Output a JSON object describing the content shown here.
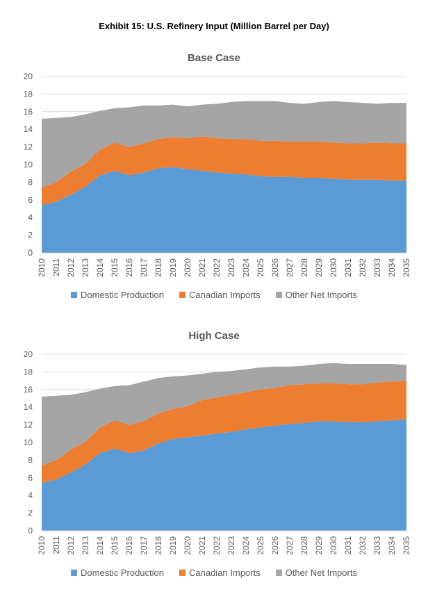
{
  "title": "Exhibit 15: U.S. Refinery Input (Million Barrel per Day)",
  "colors": {
    "domestic": "#5B9BD5",
    "canadian": "#ED7D31",
    "other": "#A5A5A5"
  },
  "legend": [
    "Domestic Production",
    "Canadian Imports",
    "Other Net Imports"
  ],
  "chart_data": [
    {
      "type": "area",
      "stacked": true,
      "title": "Base Case",
      "x": [
        "2010",
        "2011",
        "2012",
        "2013",
        "2014",
        "2015",
        "2016",
        "2017",
        "2018",
        "2019",
        "2020",
        "2021",
        "2022",
        "2023",
        "2024",
        "2025",
        "2026",
        "2027",
        "2028",
        "2029",
        "2030",
        "2031",
        "2032",
        "2033",
        "2034",
        "2035"
      ],
      "ylim": [
        0,
        20
      ],
      "yticks": [
        0,
        2,
        4,
        6,
        8,
        10,
        12,
        14,
        16,
        18,
        20
      ],
      "grid": true,
      "legend_position": "bottom",
      "series": [
        {
          "name": "Domestic Production",
          "values": [
            5.4,
            5.8,
            6.6,
            7.5,
            8.8,
            9.3,
            8.8,
            9.1,
            9.6,
            9.7,
            9.5,
            9.3,
            9.1,
            9.0,
            8.9,
            8.7,
            8.6,
            8.6,
            8.5,
            8.5,
            8.4,
            8.3,
            8.3,
            8.3,
            8.2,
            8.2
          ]
        },
        {
          "name": "Canadian Imports",
          "values": [
            2.0,
            2.2,
            2.6,
            2.6,
            2.9,
            3.2,
            3.2,
            3.3,
            3.3,
            3.4,
            3.5,
            3.9,
            3.9,
            3.9,
            4.0,
            4.0,
            4.1,
            4.0,
            4.1,
            4.1,
            4.1,
            4.1,
            4.1,
            4.2,
            4.2,
            4.2
          ]
        },
        {
          "name": "Other Net Imports",
          "values": [
            7.8,
            7.3,
            6.2,
            5.6,
            4.4,
            3.9,
            4.5,
            4.3,
            3.8,
            3.7,
            3.6,
            3.6,
            3.9,
            4.2,
            4.3,
            4.5,
            4.5,
            4.4,
            4.3,
            4.5,
            4.7,
            4.7,
            4.6,
            4.4,
            4.6,
            4.6
          ]
        }
      ]
    },
    {
      "type": "area",
      "stacked": true,
      "title": "High Case",
      "x": [
        "2010",
        "2011",
        "2012",
        "2013",
        "2014",
        "2015",
        "2016",
        "2017",
        "2018",
        "2019",
        "2020",
        "2021",
        "2022",
        "2023",
        "2024",
        "2025",
        "2026",
        "2027",
        "2028",
        "2029",
        "2030",
        "2031",
        "2032",
        "2033",
        "2034",
        "2035"
      ],
      "ylim": [
        0,
        20
      ],
      "yticks": [
        0,
        2,
        4,
        6,
        8,
        10,
        12,
        14,
        16,
        18,
        20
      ],
      "grid": true,
      "legend_position": "bottom",
      "series": [
        {
          "name": "Domestic Production",
          "values": [
            5.4,
            5.8,
            6.6,
            7.5,
            8.8,
            9.3,
            8.8,
            9.1,
            9.9,
            10.4,
            10.6,
            10.8,
            11.0,
            11.2,
            11.5,
            11.7,
            11.9,
            12.1,
            12.2,
            12.4,
            12.4,
            12.3,
            12.3,
            12.4,
            12.5,
            12.6
          ]
        },
        {
          "name": "Canadian Imports",
          "values": [
            2.0,
            2.2,
            2.6,
            2.6,
            2.9,
            3.2,
            3.2,
            3.3,
            3.4,
            3.4,
            3.5,
            4.0,
            4.1,
            4.2,
            4.2,
            4.3,
            4.3,
            4.4,
            4.4,
            4.3,
            4.3,
            4.3,
            4.3,
            4.4,
            4.4,
            4.4
          ]
        },
        {
          "name": "Other Net Imports",
          "values": [
            7.8,
            7.3,
            6.2,
            5.6,
            4.4,
            3.9,
            4.5,
            4.5,
            4.0,
            3.7,
            3.5,
            3.0,
            2.9,
            2.7,
            2.6,
            2.5,
            2.4,
            2.1,
            2.1,
            2.2,
            2.3,
            2.3,
            2.3,
            2.1,
            2.0,
            1.8
          ]
        }
      ]
    }
  ]
}
